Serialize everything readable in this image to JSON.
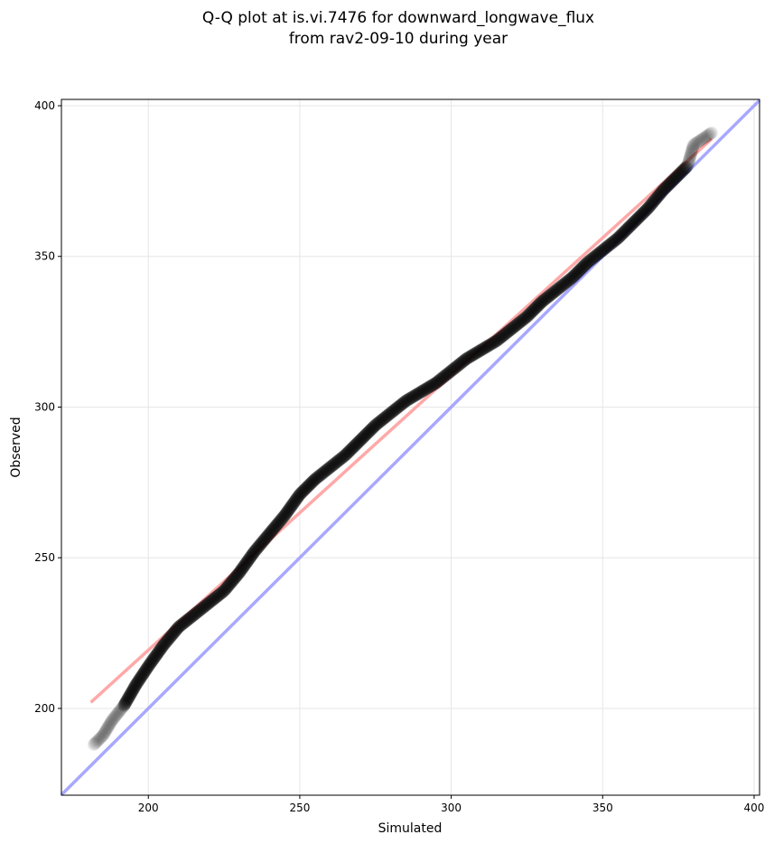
{
  "chart_data": {
    "type": "scatter",
    "title": "Q-Q plot at is.vi.7476 for downward_longwave_flux",
    "subtitle": "from rav2-09-10 during year",
    "xlabel": "Simulated",
    "ylabel": "Observed",
    "xlim": [
      171.3,
      401.8
    ],
    "ylim": [
      171.2,
      402.1
    ],
    "xticks": [
      200,
      250,
      300,
      350,
      400
    ],
    "yticks": [
      200,
      250,
      300,
      350,
      400
    ],
    "grid": true,
    "series": [
      {
        "name": "quantiles",
        "color": "#000000",
        "points": [
          [
            182,
            188
          ],
          [
            185,
            191
          ],
          [
            188,
            196
          ],
          [
            192,
            201
          ],
          [
            196,
            208
          ],
          [
            200,
            214
          ],
          [
            205,
            221
          ],
          [
            210,
            227
          ],
          [
            215,
            231
          ],
          [
            220,
            235
          ],
          [
            225,
            239
          ],
          [
            230,
            245
          ],
          [
            235,
            252
          ],
          [
            240,
            258
          ],
          [
            245,
            264
          ],
          [
            250,
            271
          ],
          [
            255,
            276
          ],
          [
            260,
            280
          ],
          [
            265,
            284
          ],
          [
            270,
            289
          ],
          [
            275,
            294
          ],
          [
            280,
            298
          ],
          [
            285,
            302
          ],
          [
            290,
            305
          ],
          [
            295,
            308
          ],
          [
            300,
            312
          ],
          [
            305,
            316
          ],
          [
            310,
            319
          ],
          [
            315,
            322
          ],
          [
            320,
            326
          ],
          [
            325,
            330
          ],
          [
            330,
            335
          ],
          [
            335,
            339
          ],
          [
            340,
            343
          ],
          [
            345,
            348
          ],
          [
            350,
            352
          ],
          [
            355,
            356
          ],
          [
            360,
            361
          ],
          [
            365,
            366
          ],
          [
            370,
            372
          ],
          [
            375,
            377
          ],
          [
            378,
            380
          ],
          [
            380,
            387
          ],
          [
            386,
            391
          ]
        ]
      },
      {
        "name": "fit line",
        "color": "#ff9999",
        "points": [
          [
            181,
            202
          ],
          [
            386,
            389
          ]
        ]
      },
      {
        "name": "1:1 line",
        "color": "#9999ff",
        "points": [
          [
            171.3,
            171.3
          ],
          [
            401.8,
            401.8
          ]
        ]
      }
    ]
  }
}
